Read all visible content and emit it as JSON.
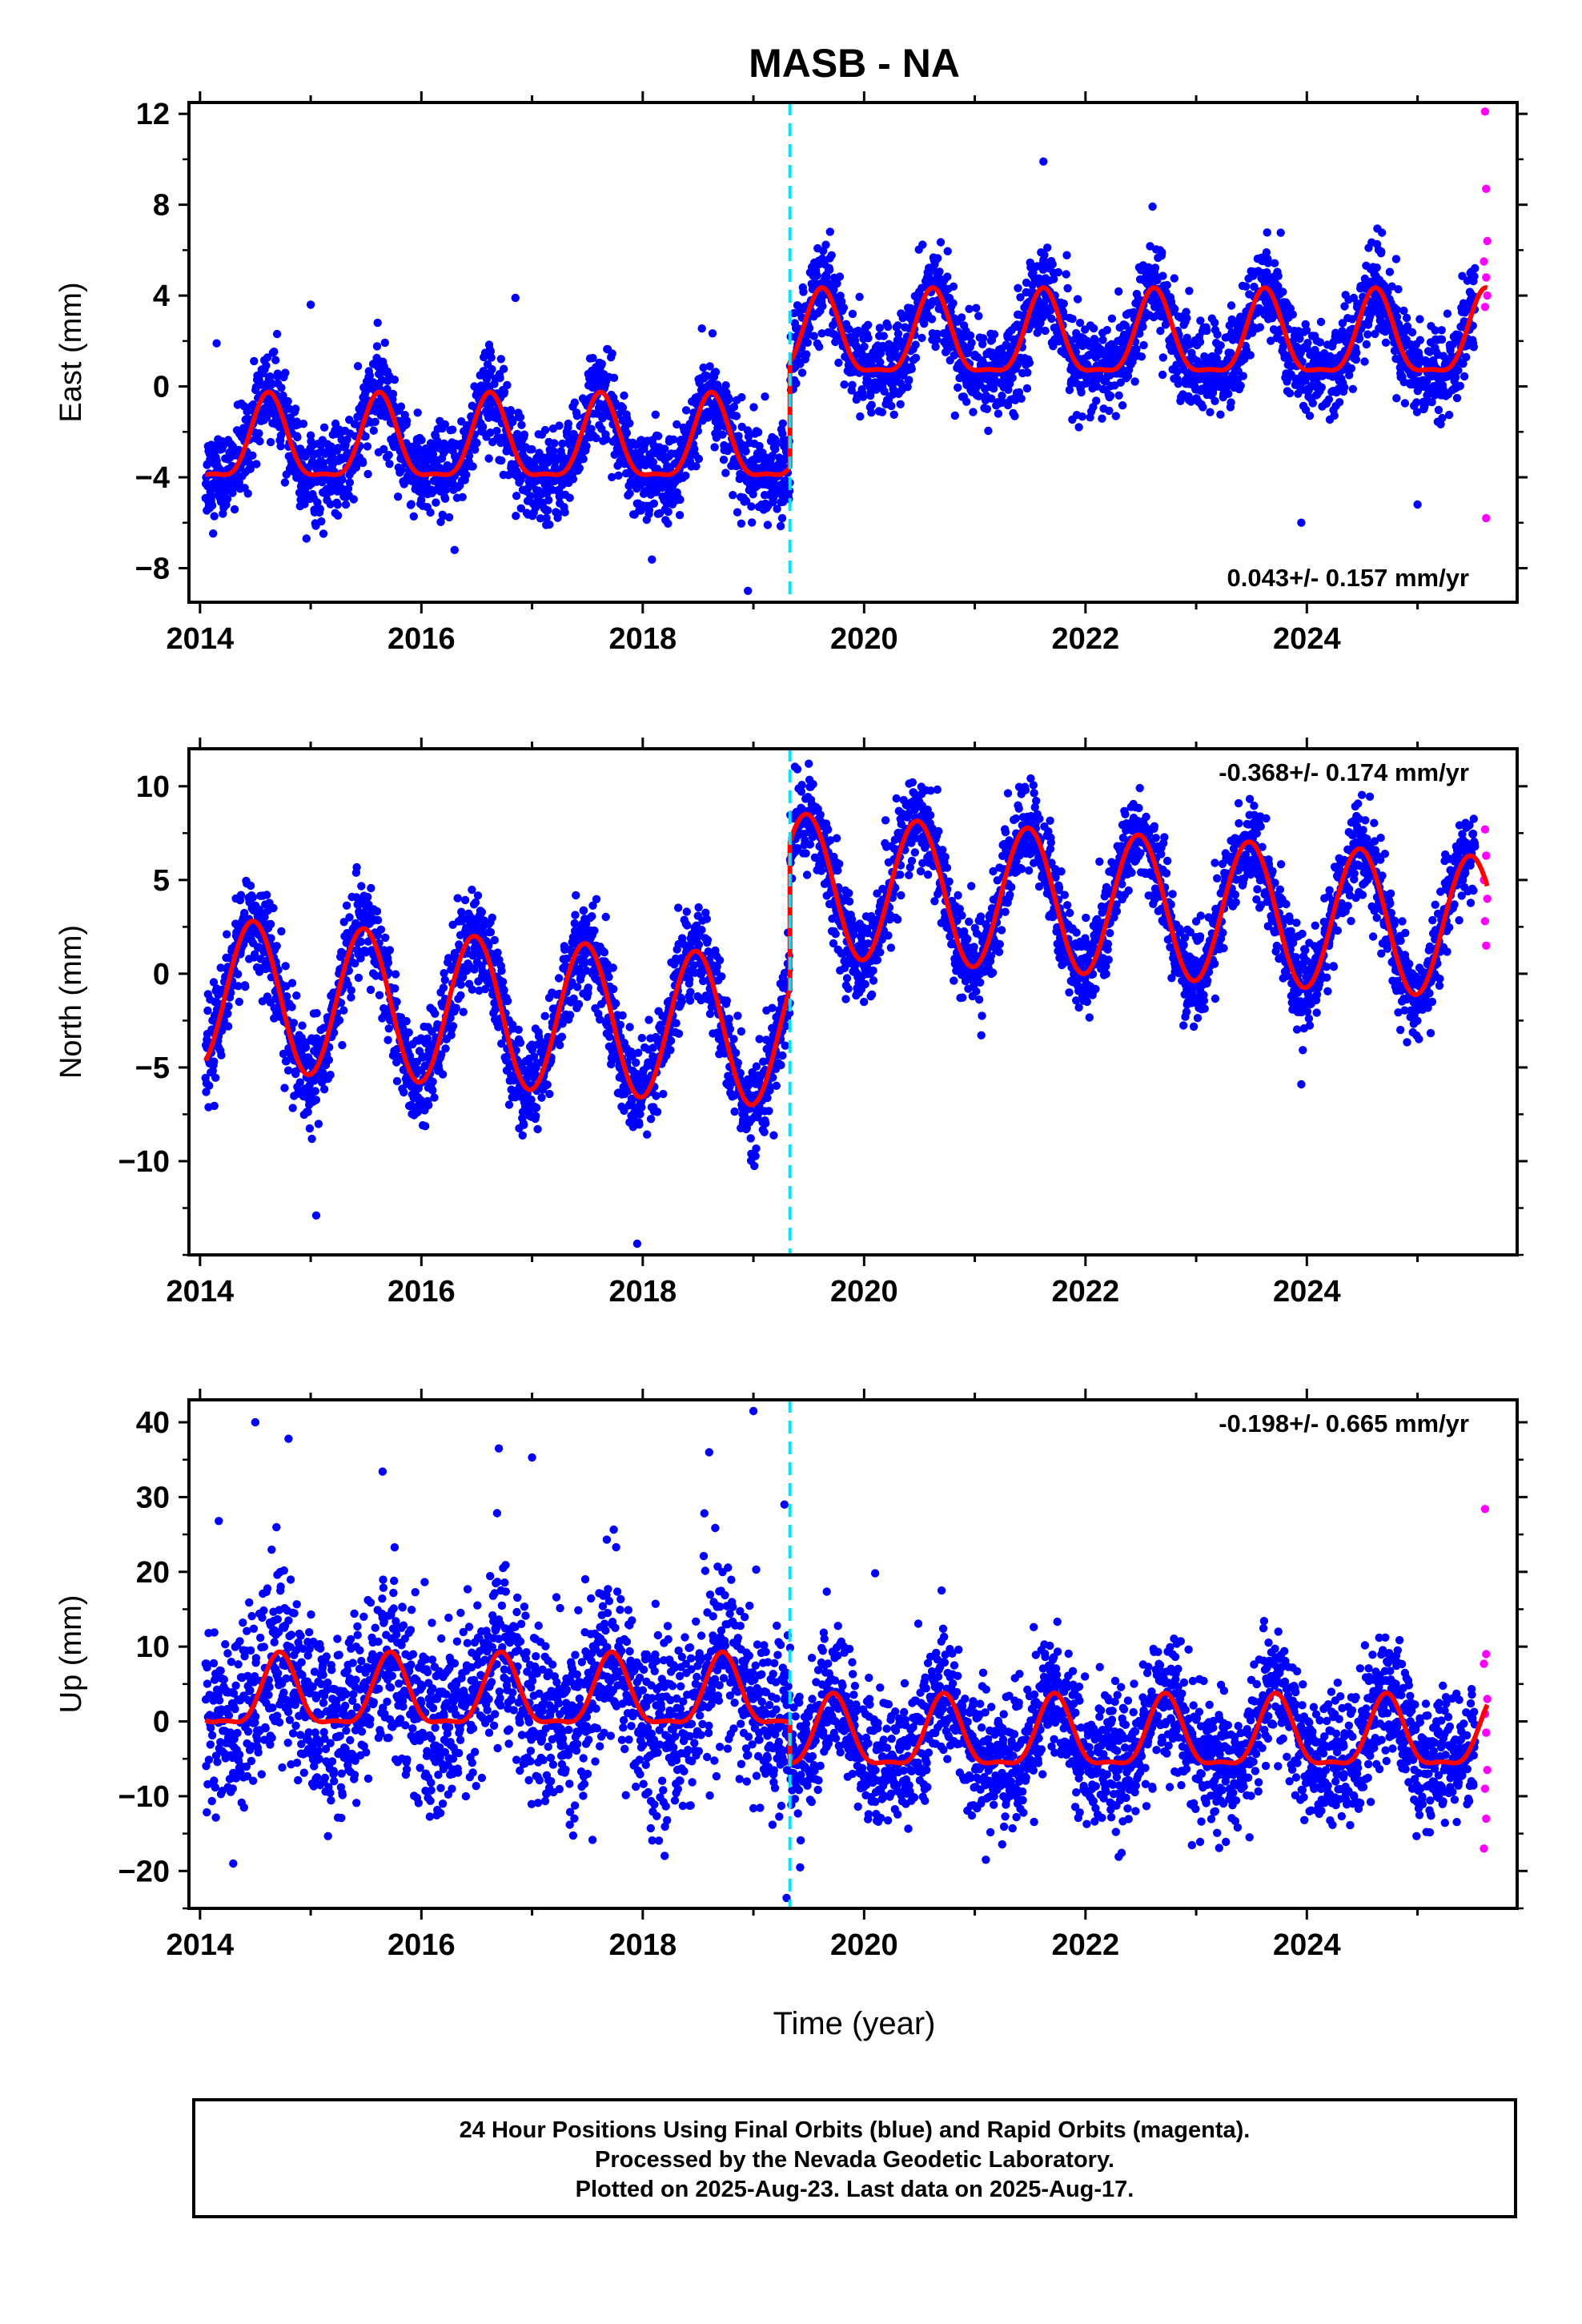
{
  "title": "MASB - NA",
  "xlabel": "Time (year)",
  "footer": {
    "line1": "24 Hour Positions Using Final Orbits (blue) and Rapid Orbits (magenta).",
    "line2": "Processed by the Nevada Geodetic Laboratory.",
    "line3": "Plotted on 2025-Aug-23. Last data on 2025-Aug-17."
  },
  "colors": {
    "final_orbits": "#0000ff",
    "rapid_orbits": "#ff00ff",
    "model": "#ff0000",
    "offset_marker": "#00e5ff"
  },
  "chart_data": [
    {
      "type": "scatter",
      "ylabel": "East (mm)",
      "velocity_label": "0.043+/- 0.157 mm/yr",
      "xlim": [
        2013.9,
        2025.9
      ],
      "ylim": [
        -9.5,
        12.5
      ],
      "xticks": [
        2014,
        2016,
        2018,
        2020,
        2022,
        2024
      ],
      "yticks": [
        -8,
        -4,
        0,
        4,
        8,
        12
      ],
      "offset_epoch": 2019.33,
      "data_start": 2014.05,
      "final_end": 2025.52,
      "rapid_end": 2025.63,
      "model": {
        "pre": {
          "mean": -2.6,
          "annual_amp": 1.8,
          "annual_peak": 2014.62,
          "semiannual_amp": 0.55,
          "semiannual_peak": 2014.62
        },
        "post": {
          "mean": 2.0,
          "annual_amp": 1.8,
          "annual_peak": 2019.62,
          "semiannual_amp": 0.55,
          "semiannual_peak": 2019.62
        }
      },
      "scatter_sigma": {
        "pre": 1.0,
        "post": 1.0
      },
      "outliers": [
        [
          2021.62,
          9.9
        ],
        [
          2014.15,
          1.9
        ],
        [
          2016.3,
          -7.2
        ],
        [
          2018.95,
          -9.0
        ],
        [
          2023.95,
          -6.0
        ],
        [
          2025.0,
          -5.2
        ],
        [
          2015.0,
          3.6
        ],
        [
          2016.85,
          3.9
        ]
      ],
      "rapid_points": [
        [
          2025.61,
          12.1
        ],
        [
          2025.62,
          8.7
        ],
        [
          2025.63,
          6.4
        ],
        [
          2025.6,
          5.5
        ],
        [
          2025.62,
          4.8
        ],
        [
          2025.63,
          4.0
        ],
        [
          2025.61,
          3.5
        ],
        [
          2025.62,
          -5.8
        ]
      ]
    },
    {
      "type": "scatter",
      "ylabel": "North (mm)",
      "velocity_label": "-0.368+/- 0.174 mm/yr",
      "xlim": [
        2013.9,
        2025.9
      ],
      "ylim": [
        -15,
        12
      ],
      "xticks": [
        2014,
        2016,
        2018,
        2020,
        2022,
        2024
      ],
      "yticks": [
        -10,
        -5,
        0,
        5,
        10
      ],
      "offset_epoch": 2019.33,
      "data_start": 2014.05,
      "final_end": 2025.52,
      "rapid_end": 2025.63,
      "model": {
        "pre": {
          "mean": -2.0,
          "trend": -0.4,
          "annual_amp": 4.0,
          "annual_peak": 2014.48,
          "semiannual_amp": 0.0,
          "semiannual_peak": 2014.48
        },
        "post": {
          "mean": 3.6,
          "trend": -0.37,
          "annual_amp": 3.8,
          "annual_peak": 2019.48,
          "semiannual_amp": 0.0,
          "semiannual_peak": 2019.48
        }
      },
      "scatter_sigma": {
        "pre": 1.3,
        "post": 1.2
      },
      "outliers": [
        [
          2015.05,
          -12.9
        ],
        [
          2017.95,
          -14.4
        ],
        [
          2019.5,
          11.2
        ],
        [
          2023.95,
          -5.9
        ]
      ],
      "rapid_points": [
        [
          2025.61,
          7.7
        ],
        [
          2025.62,
          6.3
        ],
        [
          2025.6,
          5.0
        ],
        [
          2025.63,
          4.0
        ],
        [
          2025.61,
          2.8
        ],
        [
          2025.62,
          1.5
        ]
      ]
    },
    {
      "type": "scatter",
      "ylabel": "Up (mm)",
      "velocity_label": "-0.198+/- 0.665 mm/yr",
      "xlim": [
        2013.9,
        2025.9
      ],
      "ylim": [
        -25,
        43
      ],
      "xticks": [
        2014,
        2016,
        2018,
        2020,
        2022,
        2024
      ],
      "yticks": [
        -20,
        -10,
        0,
        10,
        20,
        30,
        40
      ],
      "offset_epoch": 2019.33,
      "data_start": 2014.05,
      "final_end": 2025.52,
      "rapid_end": 2025.63,
      "model": {
        "pre": {
          "mean": 3.2,
          "annual_amp": 4.6,
          "annual_peak": 2014.72,
          "semiannual_amp": 1.5,
          "semiannual_peak": 2014.72
        },
        "post": {
          "mean": -2.3,
          "annual_amp": 4.6,
          "annual_peak": 2019.72,
          "semiannual_amp": 1.5,
          "semiannual_peak": 2019.72
        }
      },
      "scatter_sigma": {
        "pre": 6.0,
        "post": 4.3
      },
      "outliers": [
        [
          2014.5,
          40.0
        ],
        [
          2014.8,
          37.8
        ],
        [
          2016.7,
          36.5
        ],
        [
          2018.6,
          36.0
        ],
        [
          2019.0,
          41.5
        ],
        [
          2014.17,
          26.8
        ],
        [
          2015.65,
          33.4
        ],
        [
          2017.0,
          35.3
        ],
        [
          2014.3,
          -19.0
        ],
        [
          2019.3,
          -23.6
        ],
        [
          2021.1,
          -18.5
        ],
        [
          2022.3,
          -18.1
        ],
        [
          2019.28,
          29.0
        ],
        [
          2020.1,
          19.8
        ],
        [
          2020.7,
          17.5
        ]
      ],
      "rapid_points": [
        [
          2025.61,
          28.4
        ],
        [
          2025.62,
          9.0
        ],
        [
          2025.6,
          7.7
        ],
        [
          2025.63,
          3.0
        ],
        [
          2025.61,
          1.0
        ],
        [
          2025.62,
          -1.5
        ],
        [
          2025.63,
          -6.5
        ],
        [
          2025.61,
          -9.0
        ],
        [
          2025.62,
          -13.0
        ],
        [
          2025.6,
          -17.0
        ]
      ]
    }
  ]
}
